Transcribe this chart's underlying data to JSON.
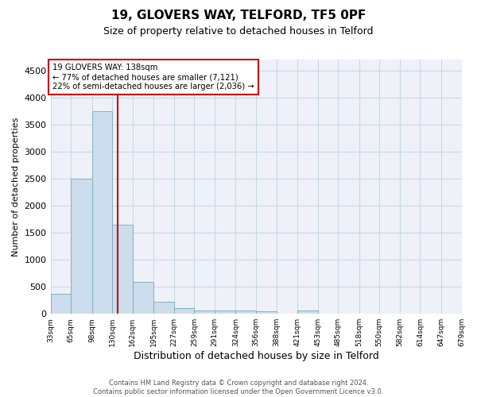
{
  "title": "19, GLOVERS WAY, TELFORD, TF5 0PF",
  "subtitle": "Size of property relative to detached houses in Telford",
  "xlabel": "Distribution of detached houses by size in Telford",
  "ylabel": "Number of detached properties",
  "footer_line1": "Contains HM Land Registry data © Crown copyright and database right 2024.",
  "footer_line2": "Contains public sector information licensed under the Open Government Licence v3.0.",
  "bar_color": "#ccdded",
  "bar_edge_color": "#7aaabb",
  "grid_color": "#c8d8e8",
  "vline_color": "#cc0000",
  "annotation_text_line1": "19 GLOVERS WAY: 138sqm",
  "annotation_text_line2": "← 77% of detached houses are smaller (7,121)",
  "annotation_text_line3": "22% of semi-detached houses are larger (2,036) →",
  "property_size": 138,
  "bin_edges": [
    33,
    65,
    98,
    130,
    162,
    195,
    227,
    259,
    291,
    324,
    356,
    388,
    421,
    453,
    485,
    518,
    550,
    582,
    614,
    647,
    679
  ],
  "bin_labels": [
    "33sqm",
    "65sqm",
    "98sqm",
    "130sqm",
    "162sqm",
    "195sqm",
    "227sqm",
    "259sqm",
    "291sqm",
    "324sqm",
    "356sqm",
    "388sqm",
    "421sqm",
    "453sqm",
    "485sqm",
    "518sqm",
    "550sqm",
    "582sqm",
    "614sqm",
    "647sqm",
    "679sqm"
  ],
  "bar_heights": [
    370,
    2500,
    3740,
    1650,
    590,
    230,
    100,
    60,
    55,
    55,
    50,
    0,
    60,
    0,
    0,
    0,
    0,
    0,
    0,
    0
  ],
  "ylim": [
    0,
    4700
  ],
  "yticks": [
    0,
    500,
    1000,
    1500,
    2000,
    2500,
    3000,
    3500,
    4000,
    4500
  ],
  "background_color": "#ffffff",
  "plot_bg_color": "#eef2f8"
}
